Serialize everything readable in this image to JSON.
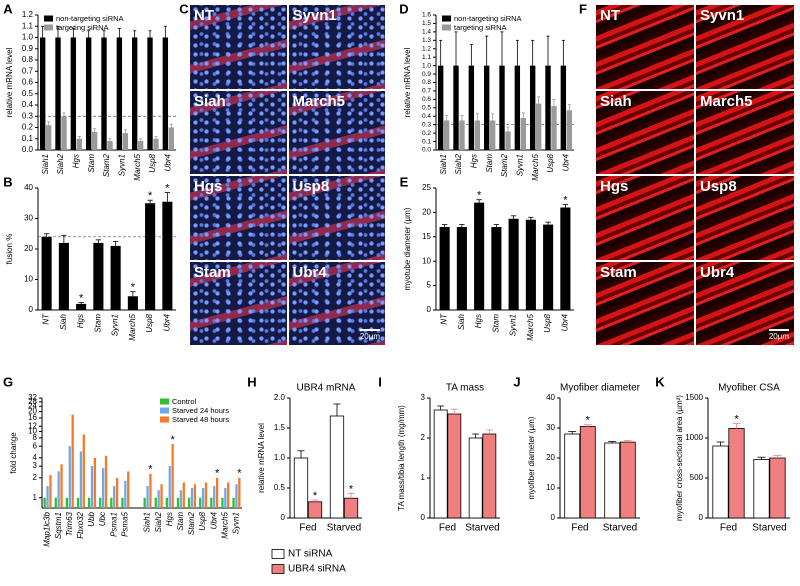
{
  "chart_data": [
    {
      "type": "bar",
      "panel": "A",
      "ylabel": "relative mRNA level",
      "categories": [
        "Siah1",
        "Siah2",
        "Hgs",
        "Stam",
        "Stam2",
        "Syvn1",
        "March5",
        "Usp8",
        "Ubr4"
      ],
      "series": [
        {
          "name": "non-targeting siRNA",
          "color": "#000000",
          "values": [
            1,
            1,
            1,
            1,
            1,
            1,
            1,
            1,
            1
          ],
          "errors": [
            0.1,
            0.1,
            0.08,
            0.06,
            0.06,
            0.08,
            0.06,
            0.06,
            0.1
          ]
        },
        {
          "name": "targeting siRNA",
          "color": "#9a9a9a",
          "values": [
            0.22,
            0.3,
            0.1,
            0.16,
            0.08,
            0.15,
            0.08,
            0.1,
            0.2
          ],
          "errors": [
            0.03,
            0.03,
            0.02,
            0.03,
            0.02,
            0.03,
            0.02,
            0.02,
            0.03
          ]
        }
      ],
      "ylim": [
        0,
        1.2
      ],
      "yticks": [
        {
          "value": 0,
          "label": "0.0"
        },
        0.1,
        0.2,
        0.3,
        0.4,
        0.5,
        0.6,
        0.7,
        0.8,
        0.9,
        {
          "value": 1,
          "label": "1.0"
        },
        1.1,
        1.2
      ],
      "hline": 0.3,
      "legend": "upper-left"
    },
    {
      "type": "bar",
      "panel": "B",
      "ylabel": "fusion %",
      "categories": [
        "NT",
        "Siah",
        "Hgs",
        "Stam",
        "Syvn1",
        "March5",
        "Usp8",
        "Ubr4"
      ],
      "values": [
        24,
        22,
        2,
        22,
        21,
        4.5,
        35,
        35.5
      ],
      "errors": [
        1,
        2.5,
        0.5,
        1,
        1.5,
        1.5,
        1,
        3
      ],
      "flags": [
        null,
        null,
        "*",
        null,
        null,
        "*",
        "*",
        "*"
      ],
      "color": "#000000",
      "ylim": [
        0,
        40
      ],
      "yticks": [
        0,
        10,
        20,
        30,
        40
      ],
      "hline": 24
    },
    {
      "type": "bar",
      "panel": "D",
      "ylabel": "relative mRNA level",
      "categories": [
        "Siah1",
        "Siah2",
        "Hgs",
        "Stam",
        "Stam2",
        "Syvn1",
        "March5",
        "Usp8",
        "Ubr4"
      ],
      "series": [
        {
          "name": "non-targeting siRNA",
          "color": "#000000",
          "values": [
            1,
            1,
            1,
            1,
            1,
            1,
            1,
            1,
            1
          ],
          "errors": [
            0.3,
            0.4,
            0.25,
            0.35,
            0.4,
            0.3,
            0.3,
            0.35,
            0.3
          ]
        },
        {
          "name": "targeting siRNA",
          "color": "#9a9a9a",
          "values": [
            0.35,
            0.35,
            0.35,
            0.35,
            0.22,
            0.38,
            0.55,
            0.52,
            0.47
          ],
          "errors": [
            0.06,
            0.06,
            0.08,
            0.08,
            0.05,
            0.06,
            0.08,
            0.08,
            0.07
          ]
        }
      ],
      "ylim": [
        0,
        1.6
      ],
      "yticks": [
        {
          "value": 0,
          "label": "0.0"
        },
        0.1,
        0.2,
        0.3,
        0.4,
        0.5,
        0.6,
        0.7,
        0.8,
        0.9,
        {
          "value": 1,
          "label": "1.0"
        },
        1.1,
        1.2,
        1.3,
        1.4,
        1.5,
        1.6
      ],
      "hline": 0.3,
      "legend": "upper-left"
    },
    {
      "type": "bar",
      "panel": "E",
      "ylabel": "myotube diameter (µm)",
      "categories": [
        "NT",
        "Siah",
        "Hgs",
        "Stam",
        "Syvn1",
        "March5",
        "Usp8",
        "Ubr4"
      ],
      "values": [
        17,
        17,
        22,
        17,
        18.7,
        18.5,
        17.5,
        21
      ],
      "errors": [
        0.5,
        0.5,
        0.6,
        0.5,
        0.6,
        0.5,
        0.5,
        0.6
      ],
      "flags": [
        null,
        null,
        "*",
        null,
        null,
        null,
        null,
        "*"
      ],
      "color": "#000000",
      "ylim": [
        0,
        25
      ],
      "yticks": [
        0,
        5,
        10,
        15,
        20,
        25
      ]
    },
    {
      "type": "bar",
      "panel": "G",
      "ylabel": "fold change",
      "log_scale": true,
      "categories": [
        "Map1lc3b",
        "Sqstm1",
        "Trim63",
        "Fbxo32",
        "Ubb",
        "Ubc",
        "Psma1",
        "Psma5",
        null,
        "Siah1",
        "Siah2",
        "Hgs",
        "Stam",
        "Stam2",
        "Usp8",
        "Ubr4",
        "March5",
        "Syvn1"
      ],
      "series": [
        {
          "name": "Control",
          "color": "#2fbf2f",
          "values": [
            1,
            1,
            1,
            1,
            1,
            1,
            1,
            1,
            null,
            1,
            1,
            1,
            1,
            1,
            1,
            1,
            1,
            1
          ]
        },
        {
          "name": "Starved 24 hours",
          "color": "#6fa8e8",
          "values": [
            1.5,
            2.5,
            6,
            5,
            3,
            2.8,
            1.5,
            1.8,
            null,
            1.5,
            1.3,
            3,
            1.3,
            1.4,
            1.4,
            1.5,
            1.4,
            1.6
          ]
        },
        {
          "name": "Starved 48 hours",
          "color": "#f47a2a",
          "values": [
            2.2,
            3.2,
            18,
            9,
            4,
            4.3,
            2,
            2.5,
            null,
            2.3,
            1.6,
            6.5,
            1.7,
            1.6,
            1.7,
            2,
            1.7,
            2
          ],
          "flags": [
            null,
            null,
            null,
            null,
            null,
            null,
            null,
            null,
            null,
            "*",
            null,
            "*",
            null,
            null,
            null,
            "*",
            null,
            "*"
          ]
        }
      ],
      "ylim": [
        0.7,
        32
      ],
      "yticks": [
        1,
        2,
        3,
        4,
        6,
        8,
        10,
        12,
        16,
        20,
        24,
        28,
        32
      ],
      "legend": "upper-right"
    },
    {
      "type": "bar",
      "panel": "H",
      "title": "UBR4 mRNA",
      "ylabel": "relative mRNA level",
      "categories": [
        "Fed",
        "Starved"
      ],
      "series": [
        {
          "name": "NT siRNA",
          "color": "#ffffff",
          "edgecolor": "#000000",
          "values": [
            1,
            1.7
          ],
          "errors": [
            0.12,
            0.2
          ]
        },
        {
          "name": "UBR4 siRNA",
          "color": "#f08080",
          "edgecolor": "#000000",
          "values": [
            0.27,
            0.33
          ],
          "errors": [
            0.03,
            0.08
          ],
          "flags": [
            "*",
            "*"
          ]
        }
      ],
      "ylim": [
        0,
        2
      ],
      "yticks": [
        0,
        0.5,
        {
          "value": 1,
          "label": "1.0"
        },
        1.5,
        {
          "value": 2,
          "label": "2.0"
        }
      ],
      "legend": "below"
    },
    {
      "type": "bar",
      "panel": "I",
      "title": "TA mass",
      "ylabel": "TA mass/tibia length (mg/mm)",
      "categories": [
        "Fed",
        "Starved"
      ],
      "series": [
        {
          "name": "NT siRNA",
          "color": "#ffffff",
          "edgecolor": "#000000",
          "values": [
            2.7,
            2.0
          ],
          "errors": [
            0.1,
            0.1
          ]
        },
        {
          "name": "UBR4 siRNA",
          "color": "#f08080",
          "edgecolor": "#000000",
          "values": [
            2.6,
            2.1
          ],
          "errors": [
            0.12,
            0.1
          ]
        }
      ],
      "ylim": [
        0,
        3
      ],
      "yticks": [
        0,
        1,
        2,
        3
      ]
    },
    {
      "type": "bar",
      "panel": "J",
      "title": "Myofiber diameter",
      "ylabel": "myofiber diameter (µm)",
      "categories": [
        "Fed",
        "Starved"
      ],
      "series": [
        {
          "name": "NT siRNA",
          "color": "#ffffff",
          "edgecolor": "#000000",
          "values": [
            28,
            25
          ],
          "errors": [
            0.8,
            0.5
          ]
        },
        {
          "name": "UBR4 siRNA",
          "color": "#f08080",
          "edgecolor": "#000000",
          "values": [
            30.5,
            25.3
          ],
          "errors": [
            0.6,
            0.5
          ],
          "flags": [
            "*",
            null
          ]
        }
      ],
      "ylim": [
        0,
        40
      ],
      "yticks": [
        0,
        10,
        20,
        30,
        40
      ]
    },
    {
      "type": "bar",
      "panel": "K",
      "title": "Myofiber CSA",
      "ylabel": "myofiber cross-sectional area (µm²)",
      "categories": [
        "Fed",
        "Starved"
      ],
      "series": [
        {
          "name": "NT siRNA",
          "color": "#ffffff",
          "edgecolor": "#000000",
          "values": [
            900,
            730
          ],
          "errors": [
            50,
            30
          ]
        },
        {
          "name": "UBR4 siRNA",
          "color": "#f08080",
          "edgecolor": "#000000",
          "values": [
            1120,
            750
          ],
          "errors": [
            60,
            30
          ],
          "flags": [
            "*",
            null
          ]
        }
      ],
      "ylim": [
        0,
        1500
      ],
      "yticks": [
        0,
        500,
        1000,
        1500
      ]
    }
  ],
  "micrographs": [
    {
      "panel": "C",
      "labels": [
        "NT",
        "Syvn1",
        "Siah",
        "March5",
        "Hgs",
        "Usp8",
        "Stam",
        "Ubr4"
      ],
      "scale_bar": "20µm"
    },
    {
      "panel": "F",
      "labels": [
        "NT",
        "Syvn1",
        "Siah",
        "March5",
        "Hgs",
        "Usp8",
        "Stam",
        "Ubr4"
      ],
      "scale_bar": "20µm"
    }
  ]
}
